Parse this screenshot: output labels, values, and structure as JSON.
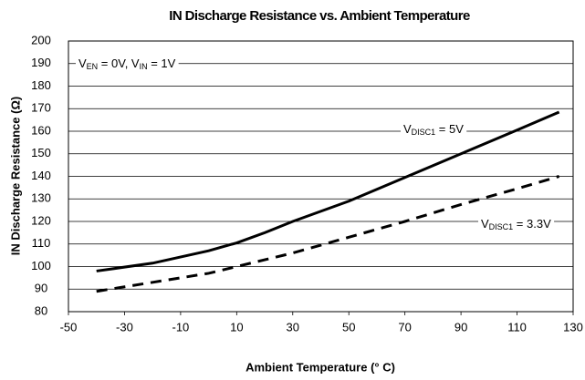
{
  "chart_data": {
    "type": "line",
    "title": "IN Discharge Resistance vs. Ambient Temperature",
    "x_label": "Ambient Temperature (° C)",
    "y_label": "IN Discharge Resistance (Ω)",
    "xlim": [
      -50,
      130
    ],
    "xticks": [
      -50,
      -30,
      -10,
      10,
      30,
      50,
      70,
      90,
      110,
      130
    ],
    "ylim": [
      80,
      200
    ],
    "yticks": [
      80,
      90,
      100,
      110,
      120,
      130,
      140,
      150,
      160,
      170,
      180,
      190,
      200
    ],
    "grid": true,
    "annotation_parts": [
      "V",
      "EN",
      " = 0V, V",
      "IN",
      " = 1V"
    ],
    "series": [
      {
        "label_parts": [
          "V",
          "DISC1",
          " = 5V"
        ],
        "color": "#000000",
        "dash": false,
        "x": [
          -40,
          -20,
          0,
          10,
          20,
          30,
          50,
          70,
          90,
          110,
          125
        ],
        "values": [
          98,
          101.5,
          107,
          110.5,
          115,
          120,
          129,
          139.5,
          150,
          160.5,
          168.5
        ]
      },
      {
        "label_parts": [
          "V",
          "DISC1",
          " = 3.3V"
        ],
        "color": "#000000",
        "dash": true,
        "x": [
          -40,
          0,
          10,
          30,
          50,
          70,
          90,
          110,
          125
        ],
        "values": [
          89,
          97,
          100,
          106,
          113,
          120,
          127.5,
          134.5,
          140
        ]
      }
    ]
  }
}
